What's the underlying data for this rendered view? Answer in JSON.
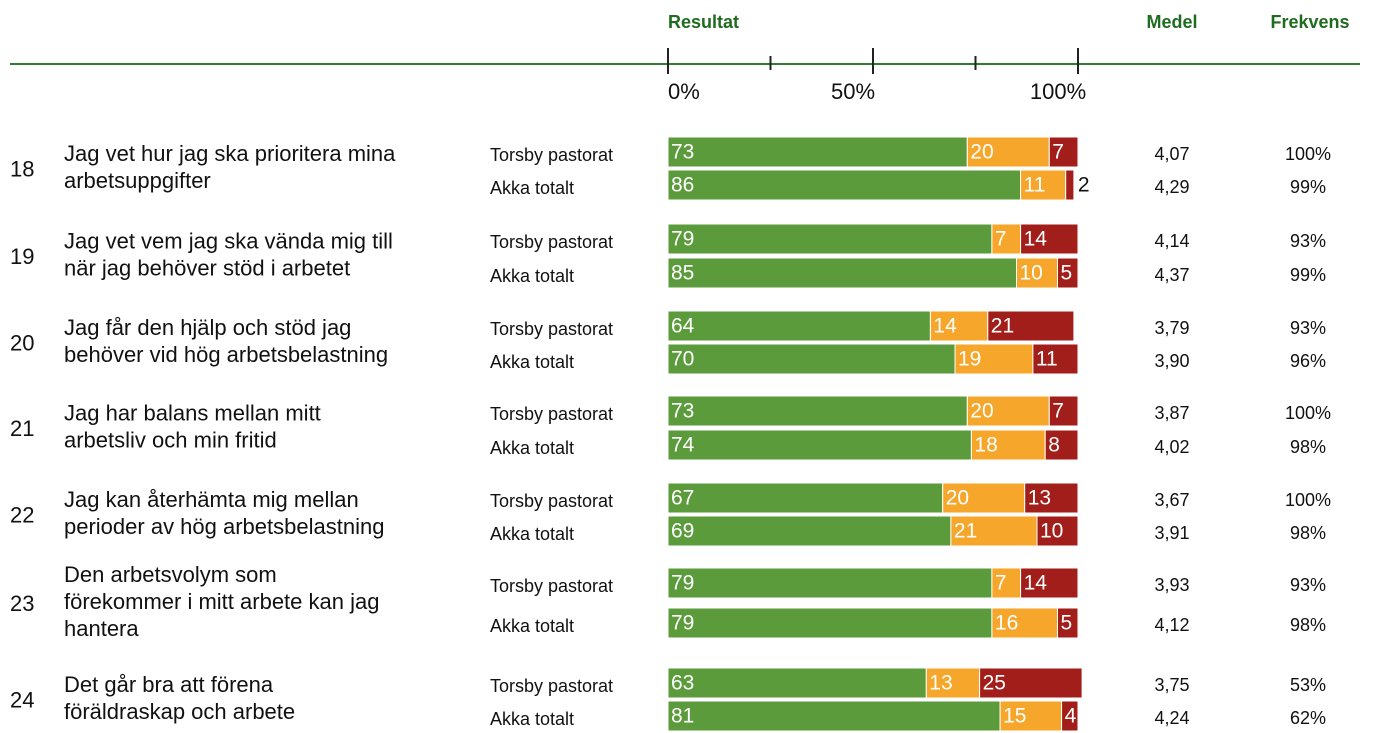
{
  "chart_data": {
    "type": "stacked-barh",
    "title": "Resultat",
    "medel_header": "Medel",
    "frekvens_header": "Frekvens",
    "xlim": [
      0,
      100
    ],
    "xticks": [
      {
        "value": 0,
        "label": "0%"
      },
      {
        "value": 50,
        "label": "50%"
      },
      {
        "value": 100,
        "label": "100%"
      }
    ],
    "minor_xticks": [
      25,
      75
    ],
    "colors": [
      "#5b9b3c",
      "#f6a62a",
      "#a21e1a"
    ],
    "items": [
      {
        "number": "18",
        "question": [
          "Jag vet hur jag ska prioritera mina",
          "arbetsuppgifter"
        ],
        "groups": [
          {
            "name": "Torsby pastorat",
            "values": [
              73,
              20,
              7
            ],
            "medel": "4,07",
            "frekvens": "100%"
          },
          {
            "name": "Akka totalt",
            "values": [
              86,
              11,
              2
            ],
            "medel": "4,29",
            "frekvens": "99%"
          }
        ]
      },
      {
        "number": "19",
        "question": [
          "Jag vet vem jag ska vända mig till",
          "när jag behöver stöd i arbetet"
        ],
        "groups": [
          {
            "name": "Torsby pastorat",
            "values": [
              79,
              7,
              14
            ],
            "medel": "4,14",
            "frekvens": "93%"
          },
          {
            "name": "Akka totalt",
            "values": [
              85,
              10,
              5
            ],
            "medel": "4,37",
            "frekvens": "99%"
          }
        ]
      },
      {
        "number": "20",
        "question": [
          "Jag får den hjälp och stöd jag",
          "behöver vid hög arbetsbelastning"
        ],
        "groups": [
          {
            "name": "Torsby pastorat",
            "values": [
              64,
              14,
              21
            ],
            "medel": "3,79",
            "frekvens": "93%"
          },
          {
            "name": "Akka totalt",
            "values": [
              70,
              19,
              11
            ],
            "medel": "3,90",
            "frekvens": "96%"
          }
        ]
      },
      {
        "number": "21",
        "question": [
          "Jag har balans mellan mitt",
          "arbetsliv och min fritid"
        ],
        "groups": [
          {
            "name": "Torsby pastorat",
            "values": [
              73,
              20,
              7
            ],
            "medel": "3,87",
            "frekvens": "100%"
          },
          {
            "name": "Akka totalt",
            "values": [
              74,
              18,
              8
            ],
            "medel": "4,02",
            "frekvens": "98%"
          }
        ]
      },
      {
        "number": "22",
        "question": [
          "Jag kan återhämta mig mellan",
          "perioder av hög arbetsbelastning"
        ],
        "groups": [
          {
            "name": "Torsby pastorat",
            "values": [
              67,
              20,
              13
            ],
            "medel": "3,67",
            "frekvens": "100%"
          },
          {
            "name": "Akka totalt",
            "values": [
              69,
              21,
              10
            ],
            "medel": "3,91",
            "frekvens": "98%"
          }
        ]
      },
      {
        "number": "23",
        "question": [
          "Den arbetsvolym som",
          "förekommer i mitt arbete kan jag",
          "hantera"
        ],
        "groups": [
          {
            "name": "Torsby pastorat",
            "values": [
              79,
              7,
              14
            ],
            "medel": "3,93",
            "frekvens": "93%"
          },
          {
            "name": "Akka totalt",
            "values": [
              79,
              16,
              5
            ],
            "medel": "4,12",
            "frekvens": "98%"
          }
        ]
      },
      {
        "number": "24",
        "question": [
          "Det går bra att förena",
          "föräldraskap och arbete"
        ],
        "groups": [
          {
            "name": "Torsby pastorat",
            "values": [
              63,
              13,
              25
            ],
            "medel": "3,75",
            "frekvens": "53%"
          },
          {
            "name": "Akka totalt",
            "values": [
              81,
              15,
              4
            ],
            "medel": "4,24",
            "frekvens": "62%"
          }
        ]
      }
    ]
  }
}
